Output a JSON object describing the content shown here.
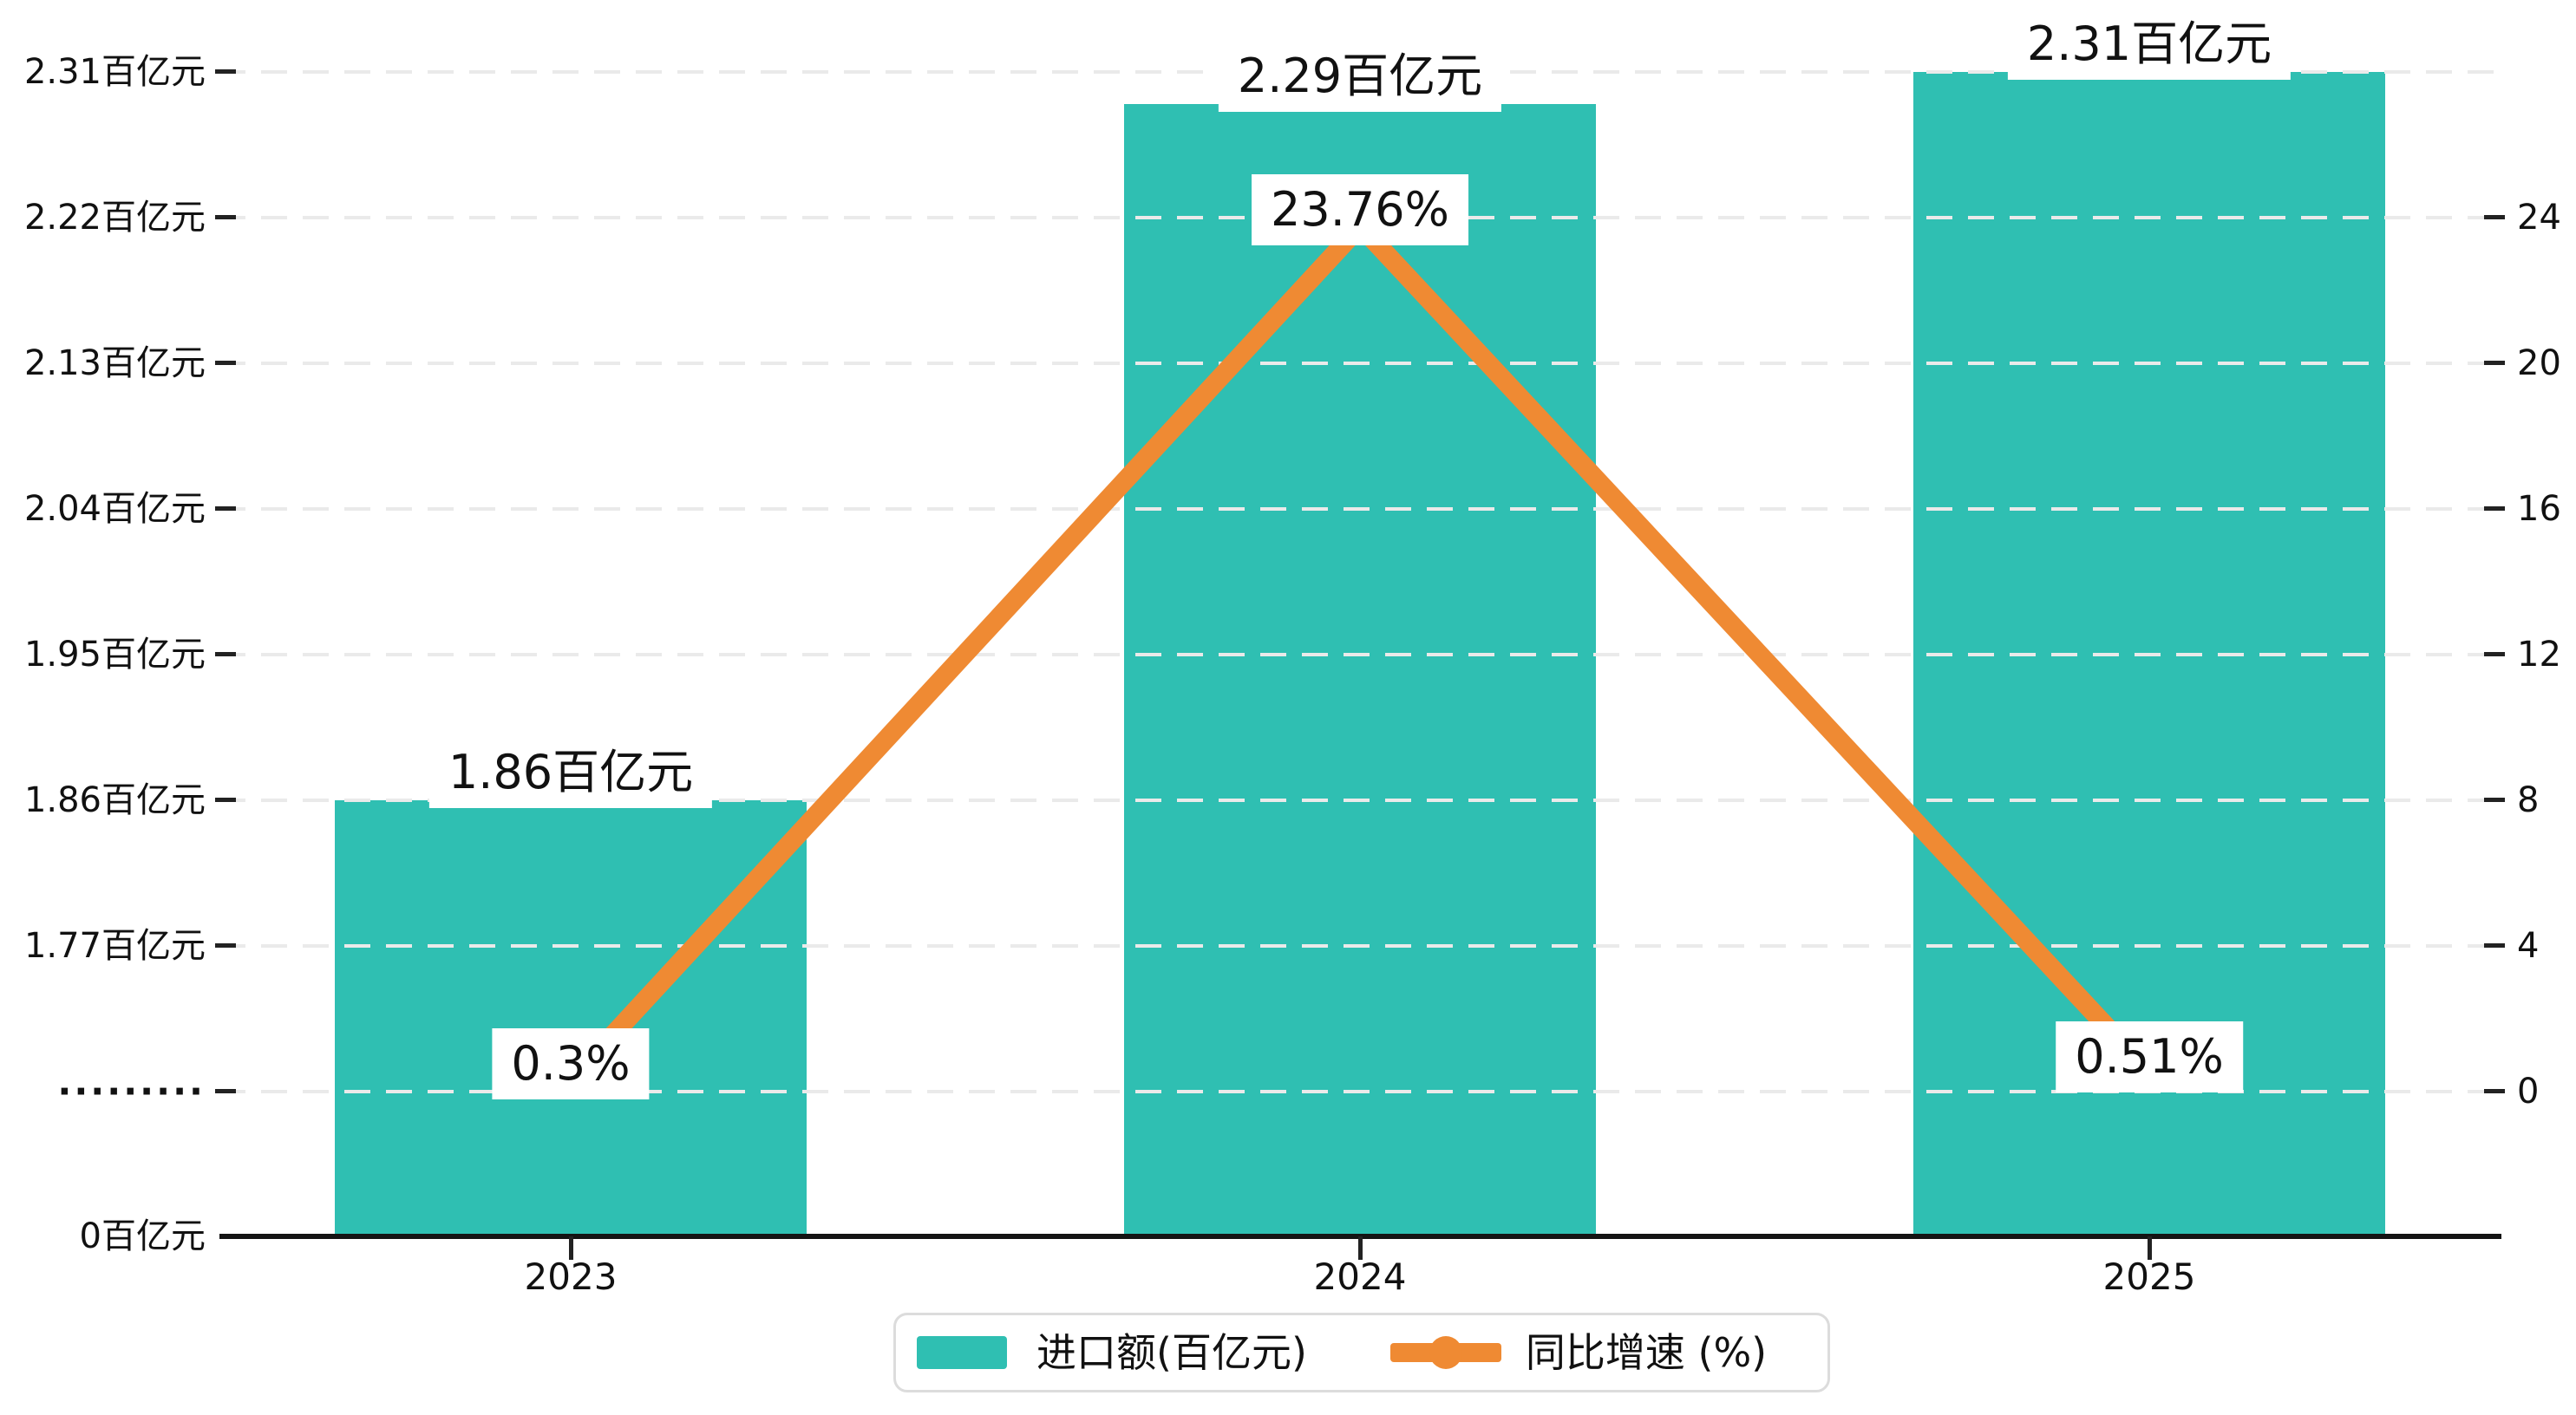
{
  "chart_data": {
    "type": "bar+line",
    "categories": [
      "2023",
      "2024",
      "2025"
    ],
    "series": [
      {
        "name": "进口额(百亿元)",
        "type": "bar",
        "values": [
          1.86,
          2.29,
          2.31
        ],
        "data_labels": [
          "1.86百亿元",
          "2.29百亿元",
          "2.31百亿元"
        ],
        "color": "#2fbfb2"
      },
      {
        "name": "同比增速 (%)",
        "type": "line",
        "values": [
          0.3,
          23.76,
          0.51
        ],
        "data_labels": [
          "0.3%",
          "23.76%",
          "0.51%"
        ],
        "color": "#ef8a33"
      }
    ],
    "left_axis": {
      "unit": "百亿元",
      "broken_axis": true,
      "break_symbol": "·········",
      "ticks_bottom_up": [
        "0百亿元",
        "·········",
        "1.77百亿元",
        "1.86百亿元",
        "1.95百亿元",
        "2.04百亿元",
        "2.13百亿元",
        "2.22百亿元",
        "2.31百亿元"
      ],
      "tick_values": [
        0,
        null,
        1.77,
        1.86,
        1.95,
        2.04,
        2.13,
        2.22,
        2.31
      ]
    },
    "right_axis": {
      "ticks_bottom_up": [
        "0",
        "4",
        "8",
        "12",
        "16",
        "20",
        "24"
      ],
      "range": [
        0,
        24
      ]
    },
    "grid": "dashed horizontal, on",
    "legend_position": "bottom",
    "title": ""
  },
  "legend": {
    "items": [
      {
        "label": "进口额(百亿元)",
        "swatch": "bar-swatch",
        "color": "#2fbfb2"
      },
      {
        "label": "同比增速 (%)",
        "swatch": "line-dot-swatch",
        "color": "#ef8a33"
      }
    ]
  },
  "colors": {
    "bar": "#2fbfb2",
    "line": "#ef8a33",
    "grid": "#eaeaea",
    "axis": "#141414",
    "text": "#111111",
    "label_bg": "#ffffff",
    "legend_border": "#dcdcdc",
    "background": "#ffffff"
  }
}
